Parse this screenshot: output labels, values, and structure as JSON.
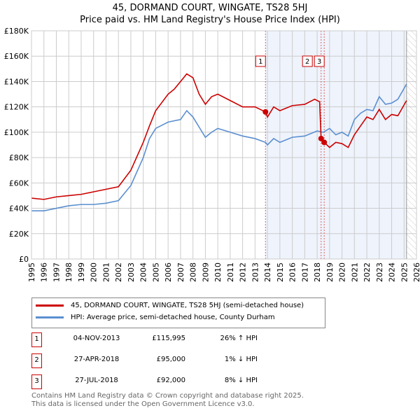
{
  "chart_data": {
    "type": "line",
    "title": "45, DORMAND COURT, WINGATE, TS28 5HJ",
    "subtitle": "Price paid vs. HM Land Registry's House Price Index (HPI)",
    "xlim": [
      1995,
      2026
    ],
    "ylim": [
      0,
      180000
    ],
    "x_ticks": [
      "1995",
      "1996",
      "1997",
      "1998",
      "1999",
      "2000",
      "2001",
      "2002",
      "2003",
      "2004",
      "2005",
      "2006",
      "2007",
      "2008",
      "2009",
      "2010",
      "2011",
      "2012",
      "2013",
      "2014",
      "2015",
      "2016",
      "2017",
      "2018",
      "2019",
      "2020",
      "2021",
      "2022",
      "2023",
      "2024",
      "2025",
      "2026"
    ],
    "y_ticks": [
      {
        "v": 0,
        "label": "£0"
      },
      {
        "v": 20000,
        "label": "£20K"
      },
      {
        "v": 40000,
        "label": "£40K"
      },
      {
        "v": 60000,
        "label": "£60K"
      },
      {
        "v": 80000,
        "label": "£80K"
      },
      {
        "v": 100000,
        "label": "£100K"
      },
      {
        "v": 120000,
        "label": "£120K"
      },
      {
        "v": 140000,
        "label": "£140K"
      },
      {
        "v": 160000,
        "label": "£160K"
      },
      {
        "v": 180000,
        "label": "£180K"
      }
    ],
    "grid": true,
    "shaded_range": [
      2013.84,
      2025.2
    ],
    "hatched_from": 2025.2,
    "series": [
      {
        "name": "45, DORMAND COURT, WINGATE, TS28 5HJ (semi-detached house)",
        "color": "#cc0000",
        "x": [
          1995,
          1996,
          1997,
          1998,
          1999,
          2000,
          2001,
          2002,
          2003,
          2004,
          2004.5,
          2005,
          2006,
          2006.5,
          2007,
          2007.5,
          2008,
          2008.5,
          2009,
          2009.5,
          2010,
          2011,
          2012,
          2013,
          2013.84,
          2014,
          2014.5,
          2015,
          2016,
          2017,
          2017.8,
          2018.2,
          2018.32,
          2018.57,
          2019,
          2019.5,
          2020,
          2020.5,
          2021,
          2021.5,
          2022,
          2022.5,
          2023,
          2023.5,
          2024,
          2024.5,
          2025.2
        ],
        "y": [
          48000,
          47000,
          49000,
          50000,
          51000,
          53000,
          55000,
          57000,
          70000,
          92000,
          105000,
          117000,
          130000,
          134000,
          140000,
          146000,
          143000,
          130000,
          122000,
          128000,
          130000,
          125000,
          120000,
          120000,
          115995,
          112000,
          120000,
          117000,
          121000,
          122000,
          126000,
          124000,
          95000,
          92000,
          88000,
          92000,
          91000,
          88000,
          98000,
          105000,
          112000,
          110000,
          118000,
          110000,
          114000,
          113000,
          125000
        ]
      },
      {
        "name": "HPI: Average price, semi-detached house, County Durham",
        "color": "#5b8fd0",
        "x": [
          1995,
          1996,
          1997,
          1998,
          1999,
          2000,
          2001,
          2002,
          2003,
          2004,
          2004.5,
          2005,
          2006,
          2007,
          2007.5,
          2008,
          2008.5,
          2009,
          2009.5,
          2010,
          2011,
          2012,
          2013,
          2013.84,
          2014,
          2014.5,
          2015,
          2016,
          2017,
          2018,
          2018.5,
          2019,
          2019.5,
          2020,
          2020.5,
          2021,
          2021.5,
          2022,
          2022.5,
          2023,
          2023.5,
          2024,
          2024.5,
          2025.2
        ],
        "y": [
          38000,
          38000,
          40000,
          42000,
          43000,
          43000,
          44000,
          46000,
          58000,
          80000,
          95000,
          103000,
          108000,
          110000,
          117000,
          112000,
          104000,
          96000,
          100000,
          103000,
          100000,
          97000,
          95000,
          92000,
          90000,
          95000,
          92000,
          96000,
          97000,
          101000,
          100000,
          103000,
          98000,
          100000,
          97000,
          110000,
          115000,
          118000,
          117000,
          128000,
          122000,
          123000,
          126000,
          138000
        ]
      }
    ],
    "sales": [
      {
        "id": "1",
        "x": 2013.84,
        "y": 115995,
        "date": "04-NOV-2013",
        "price": "£115,995",
        "hpi": "26% ↑ HPI"
      },
      {
        "id": "2",
        "x": 2018.32,
        "y": 95000,
        "date": "27-APR-2018",
        "price": "£95,000",
        "hpi": "1% ↓ HPI"
      },
      {
        "id": "3",
        "x": 2018.57,
        "y": 92000,
        "date": "27-JUL-2018",
        "price": "£92,000",
        "hpi": "8% ↓ HPI"
      }
    ]
  },
  "legend": {
    "property": "45, DORMAND COURT, WINGATE, TS28 5HJ (semi-detached house)",
    "hpi": "HPI: Average price, semi-detached house, County Durham"
  },
  "footer": {
    "line1": "Contains HM Land Registry data © Crown copyright and database right 2025.",
    "line2": "This data is licensed under the Open Government Licence v3.0."
  }
}
